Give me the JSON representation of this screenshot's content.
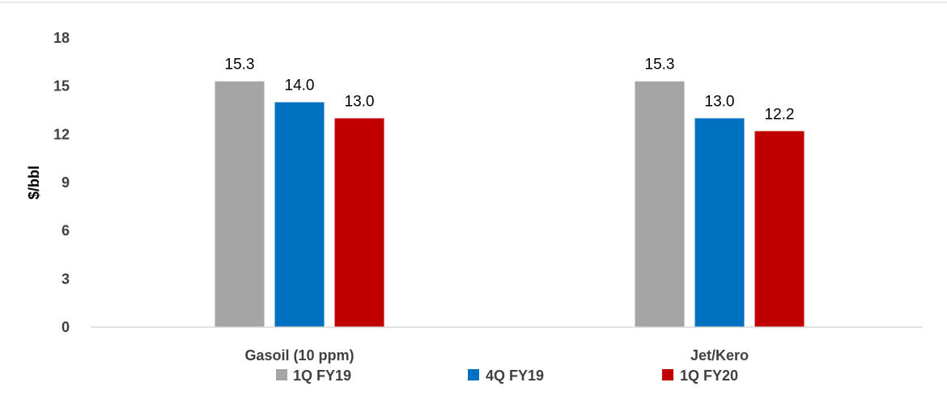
{
  "chart_data": {
    "type": "bar",
    "title": "",
    "xlabel": "",
    "ylabel": "$/bbl",
    "ylim": [
      0,
      18
    ],
    "yticks": [
      0,
      3,
      6,
      9,
      12,
      15,
      18
    ],
    "categories": [
      "Gasoil (10 ppm)",
      "Jet/Kero"
    ],
    "series": [
      {
        "name": "1Q FY19",
        "color": "#a5a5a5",
        "values": [
          15.3,
          15.3
        ],
        "labels": [
          "15.3",
          "15.3"
        ]
      },
      {
        "name": "4Q FY19",
        "color": "#0070c0",
        "values": [
          14.0,
          13.0
        ],
        "labels": [
          "14.0",
          "13.0"
        ]
      },
      {
        "name": "1Q FY20",
        "color": "#c00000",
        "values": [
          13.0,
          12.2
        ],
        "labels": [
          "13.0",
          "12.2"
        ]
      }
    ],
    "grid": false,
    "legend": "bottom",
    "colors": {
      "axis": "#d9d9d9",
      "tick_text": "#404040",
      "data_label_text": "#000000"
    }
  }
}
